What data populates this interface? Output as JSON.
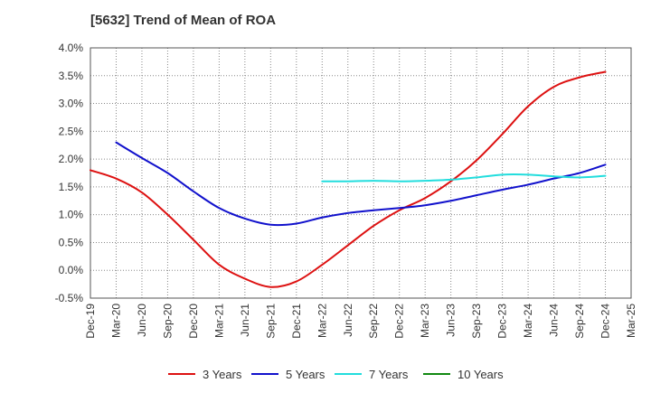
{
  "chart_data": {
    "type": "line",
    "title": "[5632]  Trend of Mean of ROA",
    "ylim": [
      -0.5,
      4.0
    ],
    "y_ticks": [
      "4.0%",
      "3.5%",
      "3.0%",
      "2.5%",
      "2.0%",
      "1.5%",
      "1.0%",
      "0.5%",
      "0.0%",
      "-0.5%"
    ],
    "y_tick_values": [
      4.0,
      3.5,
      3.0,
      2.5,
      2.0,
      1.5,
      1.0,
      0.5,
      0.0,
      -0.5
    ],
    "categories": [
      "Dec-19",
      "Mar-20",
      "Jun-20",
      "Sep-20",
      "Dec-20",
      "Mar-21",
      "Jun-21",
      "Sep-21",
      "Dec-21",
      "Mar-22",
      "Jun-22",
      "Sep-22",
      "Dec-22",
      "Mar-23",
      "Jun-23",
      "Sep-23",
      "Dec-23",
      "Mar-24",
      "Jun-24",
      "Sep-24",
      "Dec-24",
      "Mar-25"
    ],
    "grid": true,
    "legend_position": "bottom",
    "series": [
      {
        "name": "3 Years",
        "color": "#dd1111",
        "values": [
          1.8,
          1.65,
          1.4,
          1.0,
          0.55,
          0.1,
          -0.15,
          -0.3,
          -0.2,
          0.1,
          0.45,
          0.8,
          1.08,
          1.3,
          1.6,
          1.98,
          2.45,
          2.95,
          3.3,
          3.47,
          3.57,
          null
        ]
      },
      {
        "name": "5 Years",
        "color": "#1111cc",
        "values": [
          null,
          2.3,
          2.02,
          1.75,
          1.42,
          1.12,
          0.93,
          0.82,
          0.84,
          0.95,
          1.03,
          1.08,
          1.12,
          1.17,
          1.25,
          1.35,
          1.45,
          1.54,
          1.65,
          1.75,
          1.9,
          null
        ]
      },
      {
        "name": "7 Years",
        "color": "#22dddd",
        "values": [
          null,
          null,
          null,
          null,
          null,
          null,
          null,
          null,
          null,
          1.6,
          1.6,
          1.61,
          1.6,
          1.61,
          1.63,
          1.67,
          1.72,
          1.72,
          1.69,
          1.67,
          1.7,
          null
        ]
      },
      {
        "name": "10 Years",
        "color": "#118811",
        "values": [
          null,
          null,
          null,
          null,
          null,
          null,
          null,
          null,
          null,
          null,
          null,
          null,
          null,
          null,
          null,
          null,
          null,
          null,
          null,
          null,
          null,
          null
        ]
      }
    ]
  }
}
